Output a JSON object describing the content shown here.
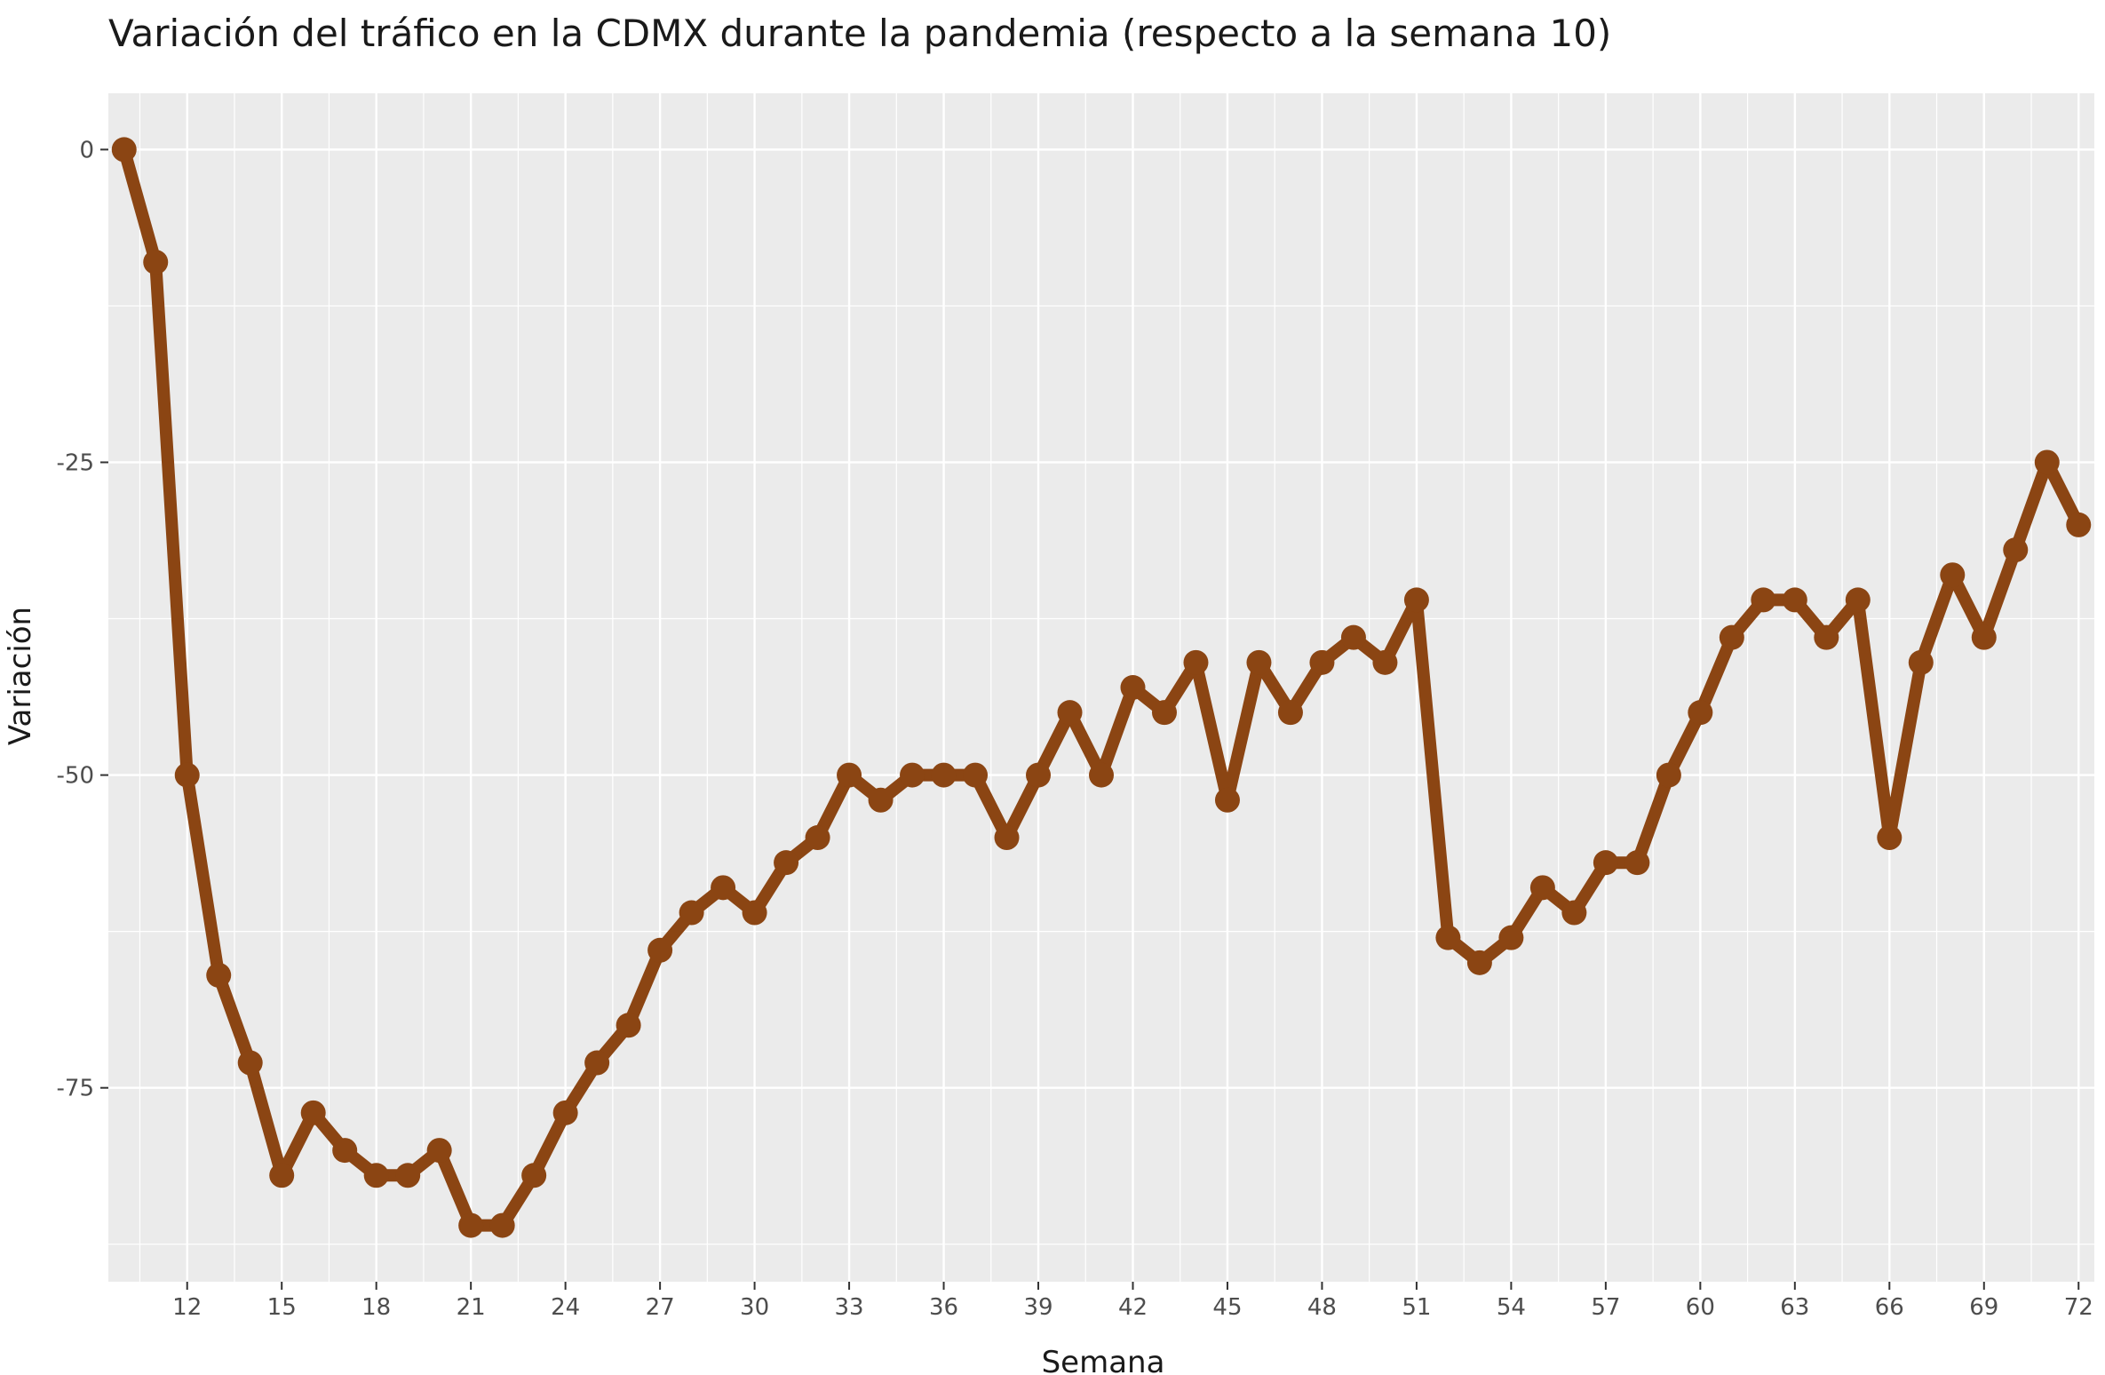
{
  "chart_data": {
    "type": "line",
    "title": "Variación del tráfico en la CDMX durante la pandemia (respecto a la semana 10)",
    "xlabel": "Semana",
    "ylabel": "Variación",
    "xlim": [
      9.5,
      72.5
    ],
    "ylim": [
      -90.5,
      4.5
    ],
    "x_ticks": [
      12,
      15,
      18,
      21,
      24,
      27,
      30,
      33,
      36,
      39,
      42,
      45,
      48,
      51,
      54,
      57,
      60,
      63,
      66,
      69,
      72
    ],
    "y_ticks": [
      0,
      -25,
      -50,
      -75
    ],
    "y_tick_labels": [
      "0",
      "-25",
      "-50",
      "-75"
    ],
    "grid": true,
    "legend": "none",
    "series": [
      {
        "color": "#8B4513",
        "x": [
          10,
          11,
          12,
          13,
          14,
          15,
          16,
          17,
          18,
          19,
          20,
          21,
          22,
          23,
          24,
          25,
          26,
          27,
          28,
          29,
          30,
          31,
          32,
          33,
          34,
          35,
          36,
          37,
          38,
          39,
          40,
          41,
          42,
          43,
          44,
          45,
          46,
          47,
          48,
          49,
          50,
          51,
          52,
          53,
          54,
          55,
          56,
          57,
          58,
          59,
          60,
          61,
          62,
          63,
          64,
          65,
          66,
          67,
          68,
          69,
          70,
          71,
          72
        ],
        "y": [
          0,
          -9,
          -50,
          -66,
          -73,
          -82,
          -77,
          -80,
          -82,
          -82,
          -80,
          -86,
          -86,
          -82,
          -77,
          -73,
          -70,
          -64,
          -61,
          -59,
          -61,
          -57,
          -55,
          -50,
          -52,
          -50,
          -50,
          -50,
          -55,
          -50,
          -45,
          -50,
          -43,
          -45,
          -41,
          -52,
          -41,
          -45,
          -41,
          -39,
          -41,
          -36,
          -63,
          -65,
          -63,
          -59,
          -61,
          -57,
          -57,
          -50,
          -45,
          -39,
          -36,
          -36,
          -39,
          -36,
          -55,
          -41,
          -34,
          -39,
          -32,
          -25,
          -30
        ]
      }
    ]
  },
  "colors": {
    "panel_background": "#EBEBEB",
    "grid": "#FFFFFF",
    "line": "#8B4513"
  }
}
